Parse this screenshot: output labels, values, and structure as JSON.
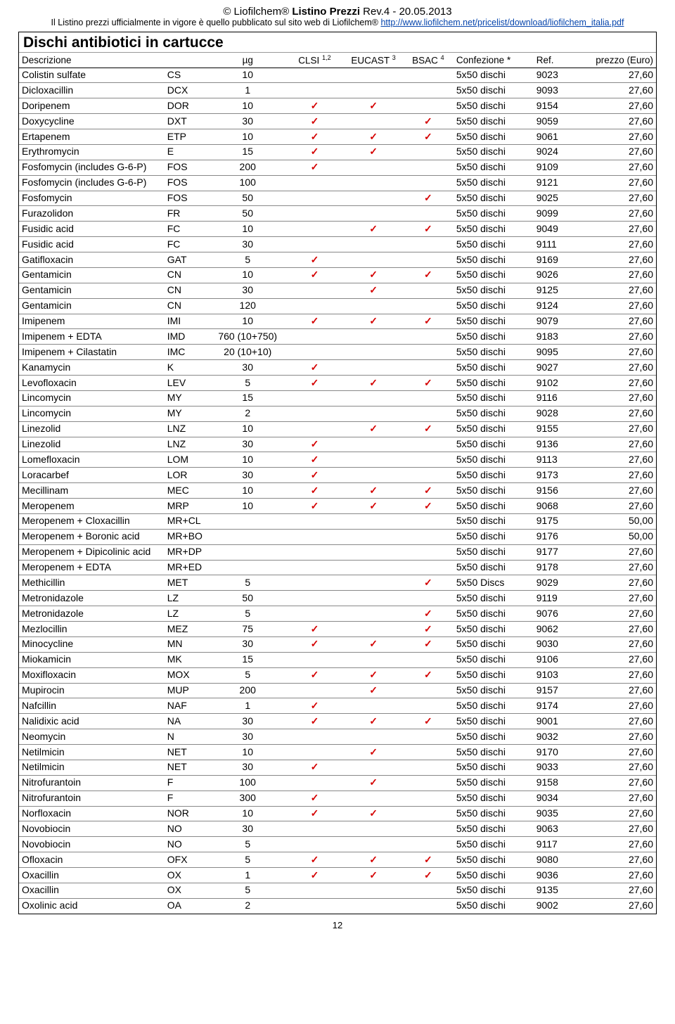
{
  "header": {
    "copyright": "© Liofilchem®",
    "title_bold": "Listino Prezzi",
    "rev": "Rev.4 - 20.05.2013",
    "subtitle_prefix": "Il Listino prezzi ufficialmente in vigore è quello pubblicato sul sito web di Liofilchem® ",
    "link": "http://www.liofilchem.net/pricelist/download/liofilchem_italia.pdf"
  },
  "section_title": "Dischi antibiotici in cartucce",
  "columns": {
    "desc": "Descrizione",
    "ug": "µg",
    "clsi": "CLSI",
    "clsi_sup": "1,2",
    "eucast": "EUCAST",
    "eucast_sup": "3",
    "bsac": "BSAC",
    "bsac_sup": "4",
    "conf": "Confezione *",
    "ref": "Ref.",
    "price": "prezzo (Euro)"
  },
  "check_glyph": "✓",
  "check_color": "#d40000",
  "rows": [
    {
      "d": "Colistin sulfate",
      "c": "CS",
      "u": "10",
      "x": [
        0,
        0,
        0
      ],
      "f": "5x50 dischi",
      "r": "9023",
      "p": "27,60"
    },
    {
      "d": "Dicloxacillin",
      "c": "DCX",
      "u": "1",
      "x": [
        0,
        0,
        0
      ],
      "f": "5x50 dischi",
      "r": "9093",
      "p": "27,60"
    },
    {
      "d": "Doripenem",
      "c": "DOR",
      "u": "10",
      "x": [
        1,
        1,
        0
      ],
      "f": "5x50 dischi",
      "r": "9154",
      "p": "27,60"
    },
    {
      "d": "Doxycycline",
      "c": "DXT",
      "u": "30",
      "x": [
        1,
        0,
        1
      ],
      "f": "5x50 dischi",
      "r": "9059",
      "p": "27,60"
    },
    {
      "d": "Ertapenem",
      "c": "ETP",
      "u": "10",
      "x": [
        1,
        1,
        1
      ],
      "f": "5x50 dischi",
      "r": "9061",
      "p": "27,60"
    },
    {
      "d": "Erythromycin",
      "c": "E",
      "u": "15",
      "x": [
        1,
        1,
        0
      ],
      "f": "5x50 dischi",
      "r": "9024",
      "p": "27,60"
    },
    {
      "d": "Fosfomycin (includes G-6-P)",
      "c": "FOS",
      "u": "200",
      "x": [
        1,
        0,
        0
      ],
      "f": "5x50 dischi",
      "r": "9109",
      "p": "27,60"
    },
    {
      "d": "Fosfomycin (includes G-6-P)",
      "c": "FOS",
      "u": "100",
      "x": [
        0,
        0,
        0
      ],
      "f": "5x50 dischi",
      "r": "9121",
      "p": "27,60"
    },
    {
      "d": "Fosfomycin",
      "c": "FOS",
      "u": "50",
      "x": [
        0,
        0,
        1
      ],
      "f": "5x50 dischi",
      "r": "9025",
      "p": "27,60"
    },
    {
      "d": "Furazolidon",
      "c": "FR",
      "u": "50",
      "x": [
        0,
        0,
        0
      ],
      "f": "5x50 dischi",
      "r": "9099",
      "p": "27,60"
    },
    {
      "d": "Fusidic acid",
      "c": "FC",
      "u": "10",
      "x": [
        0,
        1,
        1
      ],
      "f": "5x50 dischi",
      "r": "9049",
      "p": "27,60"
    },
    {
      "d": "Fusidic acid",
      "c": "FC",
      "u": "30",
      "x": [
        0,
        0,
        0
      ],
      "f": "5x50 dischi",
      "r": "9111",
      "p": "27,60"
    },
    {
      "d": "Gatifloxacin",
      "c": "GAT",
      "u": "5",
      "x": [
        1,
        0,
        0
      ],
      "f": "5x50 dischi",
      "r": "9169",
      "p": "27,60"
    },
    {
      "d": "Gentamicin",
      "c": "CN",
      "u": "10",
      "x": [
        1,
        1,
        1
      ],
      "f": "5x50 dischi",
      "r": "9026",
      "p": "27,60"
    },
    {
      "d": "Gentamicin",
      "c": "CN",
      "u": "30",
      "x": [
        0,
        1,
        0
      ],
      "f": "5x50 dischi",
      "r": "9125",
      "p": "27,60"
    },
    {
      "d": "Gentamicin",
      "c": "CN",
      "u": "120",
      "x": [
        0,
        0,
        0
      ],
      "f": "5x50 dischi",
      "r": "9124",
      "p": "27,60"
    },
    {
      "d": "Imipenem",
      "c": "IMI",
      "u": "10",
      "x": [
        1,
        1,
        1
      ],
      "f": "5x50 dischi",
      "r": "9079",
      "p": "27,60"
    },
    {
      "d": "Imipenem + EDTA",
      "c": "IMD",
      "u": "760 (10+750)",
      "x": [
        0,
        0,
        0
      ],
      "f": "5x50 dischi",
      "r": "9183",
      "p": "27,60"
    },
    {
      "d": "Imipenem + Cilastatin",
      "c": "IMC",
      "u": "20 (10+10)",
      "x": [
        0,
        0,
        0
      ],
      "f": "5x50 dischi",
      "r": "9095",
      "p": "27,60"
    },
    {
      "d": "Kanamycin",
      "c": "K",
      "u": "30",
      "x": [
        1,
        0,
        0
      ],
      "f": "5x50 dischi",
      "r": "9027",
      "p": "27,60"
    },
    {
      "d": "Levofloxacin",
      "c": "LEV",
      "u": "5",
      "x": [
        1,
        1,
        1
      ],
      "f": "5x50 dischi",
      "r": "9102",
      "p": "27,60"
    },
    {
      "d": "Lincomycin",
      "c": "MY",
      "u": "15",
      "x": [
        0,
        0,
        0
      ],
      "f": "5x50 dischi",
      "r": "9116",
      "p": "27,60"
    },
    {
      "d": "Lincomycin",
      "c": "MY",
      "u": "2",
      "x": [
        0,
        0,
        0
      ],
      "f": "5x50 dischi",
      "r": "9028",
      "p": "27,60"
    },
    {
      "d": "Linezolid",
      "c": "LNZ",
      "u": "10",
      "x": [
        0,
        1,
        1
      ],
      "f": "5x50 dischi",
      "r": "9155",
      "p": "27,60"
    },
    {
      "d": "Linezolid",
      "c": "LNZ",
      "u": "30",
      "x": [
        1,
        0,
        0
      ],
      "f": "5x50 dischi",
      "r": "9136",
      "p": "27,60"
    },
    {
      "d": "Lomefloxacin",
      "c": "LOM",
      "u": "10",
      "x": [
        1,
        0,
        0
      ],
      "f": "5x50 dischi",
      "r": "9113",
      "p": "27,60"
    },
    {
      "d": "Loracarbef",
      "c": "LOR",
      "u": "30",
      "x": [
        1,
        0,
        0
      ],
      "f": "5x50 dischi",
      "r": "9173",
      "p": "27,60"
    },
    {
      "d": "Mecillinam",
      "c": "MEC",
      "u": "10",
      "x": [
        1,
        1,
        1
      ],
      "f": "5x50 dischi",
      "r": "9156",
      "p": "27,60"
    },
    {
      "d": "Meropenem",
      "c": "MRP",
      "u": "10",
      "x": [
        1,
        1,
        1
      ],
      "f": "5x50 dischi",
      "r": "9068",
      "p": "27,60"
    },
    {
      "d": "Meropenem + Cloxacillin",
      "c": "MR+CL",
      "u": "",
      "x": [
        0,
        0,
        0
      ],
      "f": "5x50 dischi",
      "r": "9175",
      "p": "50,00"
    },
    {
      "d": "Meropenem + Boronic acid",
      "c": "MR+BO",
      "u": "",
      "x": [
        0,
        0,
        0
      ],
      "f": "5x50 dischi",
      "r": "9176",
      "p": "50,00"
    },
    {
      "d": "Meropenem + Dipicolinic acid",
      "c": "MR+DP",
      "u": "",
      "x": [
        0,
        0,
        0
      ],
      "f": "5x50 dischi",
      "r": "9177",
      "p": "27,60"
    },
    {
      "d": "Meropenem + EDTA",
      "c": "MR+ED",
      "u": "",
      "x": [
        0,
        0,
        0
      ],
      "f": "5x50 dischi",
      "r": "9178",
      "p": "27,60"
    },
    {
      "d": "Methicillin",
      "c": "MET",
      "u": "5",
      "x": [
        0,
        0,
        1
      ],
      "f": "5x50 Discs",
      "r": "9029",
      "p": "27,60"
    },
    {
      "d": "Metronidazole",
      "c": "LZ",
      "u": "50",
      "x": [
        0,
        0,
        0
      ],
      "f": "5x50 dischi",
      "r": "9119",
      "p": "27,60"
    },
    {
      "d": "Metronidazole",
      "c": "LZ",
      "u": "5",
      "x": [
        0,
        0,
        1
      ],
      "f": "5x50 dischi",
      "r": "9076",
      "p": "27,60"
    },
    {
      "d": "Mezlocillin",
      "c": "MEZ",
      "u": "75",
      "x": [
        1,
        0,
        1
      ],
      "f": "5x50 dischi",
      "r": "9062",
      "p": "27,60"
    },
    {
      "d": "Minocycline",
      "c": "MN",
      "u": "30",
      "x": [
        1,
        1,
        1
      ],
      "f": "5x50 dischi",
      "r": "9030",
      "p": "27,60"
    },
    {
      "d": "Miokamicin",
      "c": "MK",
      "u": "15",
      "x": [
        0,
        0,
        0
      ],
      "f": "5x50 dischi",
      "r": "9106",
      "p": "27,60"
    },
    {
      "d": "Moxifloxacin",
      "c": "MOX",
      "u": "5",
      "x": [
        1,
        1,
        1
      ],
      "f": "5x50 dischi",
      "r": "9103",
      "p": "27,60"
    },
    {
      "d": "Mupirocin",
      "c": "MUP",
      "u": "200",
      "x": [
        0,
        1,
        0
      ],
      "f": "5x50 dischi",
      "r": "9157",
      "p": "27,60"
    },
    {
      "d": "Nafcillin",
      "c": "NAF",
      "u": "1",
      "x": [
        1,
        0,
        0
      ],
      "f": "5x50 dischi",
      "r": "9174",
      "p": "27,60"
    },
    {
      "d": "Nalidixic acid",
      "c": "NA",
      "u": "30",
      "x": [
        1,
        1,
        1
      ],
      "f": "5x50 dischi",
      "r": "9001",
      "p": "27,60"
    },
    {
      "d": "Neomycin",
      "c": "N",
      "u": "30",
      "x": [
        0,
        0,
        0
      ],
      "f": "5x50 dischi",
      "r": "9032",
      "p": "27,60"
    },
    {
      "d": "Netilmicin",
      "c": "NET",
      "u": "10",
      "x": [
        0,
        1,
        0
      ],
      "f": "5x50 dischi",
      "r": "9170",
      "p": "27,60"
    },
    {
      "d": "Netilmicin",
      "c": "NET",
      "u": "30",
      "x": [
        1,
        0,
        0
      ],
      "f": "5x50 dischi",
      "r": "9033",
      "p": "27,60"
    },
    {
      "d": "Nitrofurantoin",
      "c": "F",
      "u": "100",
      "x": [
        0,
        1,
        0
      ],
      "f": "5x50 dischi",
      "r": "9158",
      "p": "27,60"
    },
    {
      "d": "Nitrofurantoin",
      "c": "F",
      "u": "300",
      "x": [
        1,
        0,
        0
      ],
      "f": "5x50 dischi",
      "r": "9034",
      "p": "27,60"
    },
    {
      "d": "Norfloxacin",
      "c": "NOR",
      "u": "10",
      "x": [
        1,
        1,
        0
      ],
      "f": "5x50 dischi",
      "r": "9035",
      "p": "27,60"
    },
    {
      "d": "Novobiocin",
      "c": "NO",
      "u": "30",
      "x": [
        0,
        0,
        0
      ],
      "f": "5x50 dischi",
      "r": "9063",
      "p": "27,60"
    },
    {
      "d": "Novobiocin",
      "c": "NO",
      "u": "5",
      "x": [
        0,
        0,
        0
      ],
      "f": "5x50 dischi",
      "r": "9117",
      "p": "27,60"
    },
    {
      "d": "Ofloxacin",
      "c": "OFX",
      "u": "5",
      "x": [
        1,
        1,
        1
      ],
      "f": "5x50 dischi",
      "r": "9080",
      "p": "27,60"
    },
    {
      "d": "Oxacillin",
      "c": "OX",
      "u": "1",
      "x": [
        1,
        1,
        1
      ],
      "f": "5x50 dischi",
      "r": "9036",
      "p": "27,60"
    },
    {
      "d": "Oxacillin",
      "c": "OX",
      "u": "5",
      "x": [
        0,
        0,
        0
      ],
      "f": "5x50 dischi",
      "r": "9135",
      "p": "27,60"
    },
    {
      "d": "Oxolinic acid",
      "c": "OA",
      "u": "2",
      "x": [
        0,
        0,
        0
      ],
      "f": "5x50 dischi",
      "r": "9002",
      "p": "27,60"
    }
  ],
  "page_number": "12"
}
